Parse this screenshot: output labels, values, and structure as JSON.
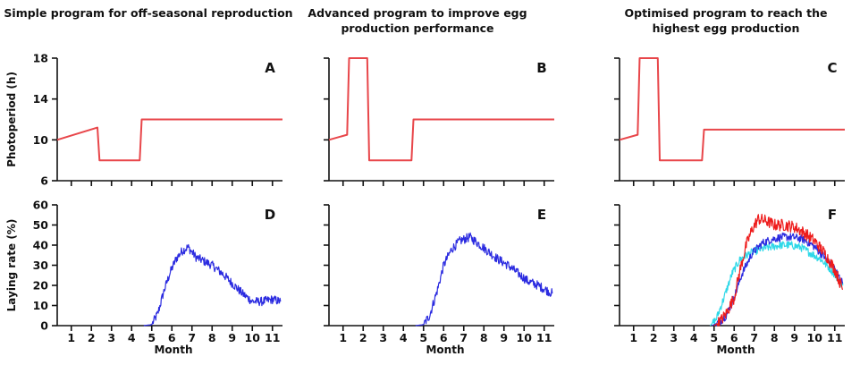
{
  "chart_data": {
    "type": "line",
    "columns": [
      {
        "id": "simple",
        "title_lines": [
          "Simple program for off-seasonal reproduction"
        ]
      },
      {
        "id": "advanced",
        "title_lines": [
          "Advanced program to improve egg",
          "production performance"
        ]
      },
      {
        "id": "optimised",
        "title_lines": [
          "Optimised program to reach the",
          "highest egg production"
        ]
      }
    ],
    "x_axis": {
      "label": "Month",
      "range": [
        0.3,
        11.5
      ],
      "ticks": [
        1,
        2,
        3,
        4,
        5,
        6,
        7,
        8,
        9,
        10,
        11
      ],
      "tick_labels": [
        "1",
        "2",
        "3",
        "4",
        "5",
        "6",
        "7",
        "8",
        "9",
        "10",
        "11"
      ]
    },
    "top_row": {
      "ylabel": "Photoperiod (h)",
      "ylim": [
        6,
        18
      ],
      "yticks": [
        6,
        10,
        14,
        18
      ],
      "ytick_labels": [
        "6",
        "10",
        "14",
        "18"
      ]
    },
    "bottom_row": {
      "ylabel": "Laying rate (%)",
      "ylim": [
        0,
        60
      ],
      "yticks": [
        0,
        10,
        20,
        30,
        40,
        50,
        60
      ],
      "ytick_labels": [
        "0",
        "10",
        "20",
        "30",
        "40",
        "50",
        "60"
      ]
    },
    "panels": [
      {
        "letter": "A",
        "row": "top",
        "col": 0,
        "series": [
          {
            "name": "photoperiod",
            "color": "#e8464a",
            "noise": 0,
            "points": [
              [
                0.3,
                10
              ],
              [
                2.3,
                11.2
              ],
              [
                2.4,
                8
              ],
              [
                4.4,
                8
              ],
              [
                4.5,
                12
              ],
              [
                11.5,
                12
              ]
            ]
          }
        ]
      },
      {
        "letter": "B",
        "row": "top",
        "col": 1,
        "series": [
          {
            "name": "photoperiod",
            "color": "#e8464a",
            "noise": 0,
            "points": [
              [
                0.3,
                10
              ],
              [
                1.2,
                10.5
              ],
              [
                1.3,
                18
              ],
              [
                2.2,
                18
              ],
              [
                2.3,
                8
              ],
              [
                4.4,
                8
              ],
              [
                4.5,
                12
              ],
              [
                11.5,
                12
              ]
            ]
          }
        ]
      },
      {
        "letter": "C",
        "row": "top",
        "col": 2,
        "series": [
          {
            "name": "photoperiod",
            "color": "#e8464a",
            "noise": 0,
            "points": [
              [
                0.3,
                10
              ],
              [
                1.2,
                10.5
              ],
              [
                1.3,
                18
              ],
              [
                2.2,
                18
              ],
              [
                2.3,
                8
              ],
              [
                4.4,
                8
              ],
              [
                4.5,
                11
              ],
              [
                11.5,
                11
              ]
            ]
          }
        ]
      },
      {
        "letter": "D",
        "row": "bottom",
        "col": 0,
        "series": [
          {
            "name": "laying rate",
            "color": "#2b2be0",
            "noise": 2.2,
            "points": [
              [
                4.6,
                0
              ],
              [
                5.0,
                0.5
              ],
              [
                5.3,
                6
              ],
              [
                5.6,
                17
              ],
              [
                5.9,
                26
              ],
              [
                6.2,
                33
              ],
              [
                6.5,
                37
              ],
              [
                6.8,
                39
              ],
              [
                7.2,
                34
              ],
              [
                7.6,
                32
              ],
              [
                8.0,
                30
              ],
              [
                8.5,
                26
              ],
              [
                9.0,
                21
              ],
              [
                9.5,
                16
              ],
              [
                10.0,
                12
              ],
              [
                10.5,
                12
              ],
              [
                11.0,
                13
              ],
              [
                11.4,
                12
              ]
            ]
          }
        ]
      },
      {
        "letter": "E",
        "row": "bottom",
        "col": 1,
        "series": [
          {
            "name": "laying rate",
            "color": "#2b2be0",
            "noise": 2.3,
            "points": [
              [
                4.6,
                0
              ],
              [
                5.0,
                0.5
              ],
              [
                5.3,
                5
              ],
              [
                5.7,
                18
              ],
              [
                6.0,
                30
              ],
              [
                6.4,
                38
              ],
              [
                6.8,
                42
              ],
              [
                7.3,
                44
              ],
              [
                7.7,
                41
              ],
              [
                8.2,
                37
              ],
              [
                8.7,
                33
              ],
              [
                9.2,
                30
              ],
              [
                9.7,
                26
              ],
              [
                10.2,
                22
              ],
              [
                10.7,
                20
              ],
              [
                11.4,
                16
              ]
            ]
          }
        ]
      },
      {
        "letter": "F",
        "row": "bottom",
        "col": 2,
        "series": [
          {
            "name": "cyan",
            "color": "#2ed8e8",
            "noise": 2.0,
            "points": [
              [
                4.8,
                0
              ],
              [
                5.1,
                3
              ],
              [
                5.5,
                14
              ],
              [
                5.9,
                26
              ],
              [
                6.3,
                33
              ],
              [
                6.8,
                36
              ],
              [
                7.3,
                38
              ],
              [
                7.8,
                39
              ],
              [
                8.3,
                40
              ],
              [
                8.8,
                40
              ],
              [
                9.3,
                39
              ],
              [
                9.8,
                36
              ],
              [
                10.3,
                33
              ],
              [
                10.8,
                28
              ],
              [
                11.4,
                20
              ]
            ]
          },
          {
            "name": "blue",
            "color": "#2b2be0",
            "noise": 2.0,
            "points": [
              [
                4.9,
                0
              ],
              [
                5.3,
                2
              ],
              [
                5.6,
                5
              ],
              [
                6.0,
                14
              ],
              [
                6.4,
                26
              ],
              [
                6.9,
                36
              ],
              [
                7.4,
                41
              ],
              [
                7.9,
                43
              ],
              [
                8.4,
                44
              ],
              [
                8.9,
                44
              ],
              [
                9.4,
                43
              ],
              [
                9.9,
                40
              ],
              [
                10.4,
                35
              ],
              [
                10.9,
                30
              ],
              [
                11.4,
                21
              ]
            ]
          },
          {
            "name": "red",
            "color": "#ee1c1c",
            "noise": 3.0,
            "points": [
              [
                5.0,
                0
              ],
              [
                5.3,
                2
              ],
              [
                5.6,
                6
              ],
              [
                6.0,
                14
              ],
              [
                6.3,
                28
              ],
              [
                6.6,
                40
              ],
              [
                6.9,
                48
              ],
              [
                7.2,
                53
              ],
              [
                7.6,
                52
              ],
              [
                8.0,
                50
              ],
              [
                8.5,
                50
              ],
              [
                9.0,
                49
              ],
              [
                9.5,
                46
              ],
              [
                10.0,
                42
              ],
              [
                10.5,
                36
              ],
              [
                11.0,
                28
              ],
              [
                11.4,
                18
              ]
            ]
          }
        ]
      }
    ]
  }
}
